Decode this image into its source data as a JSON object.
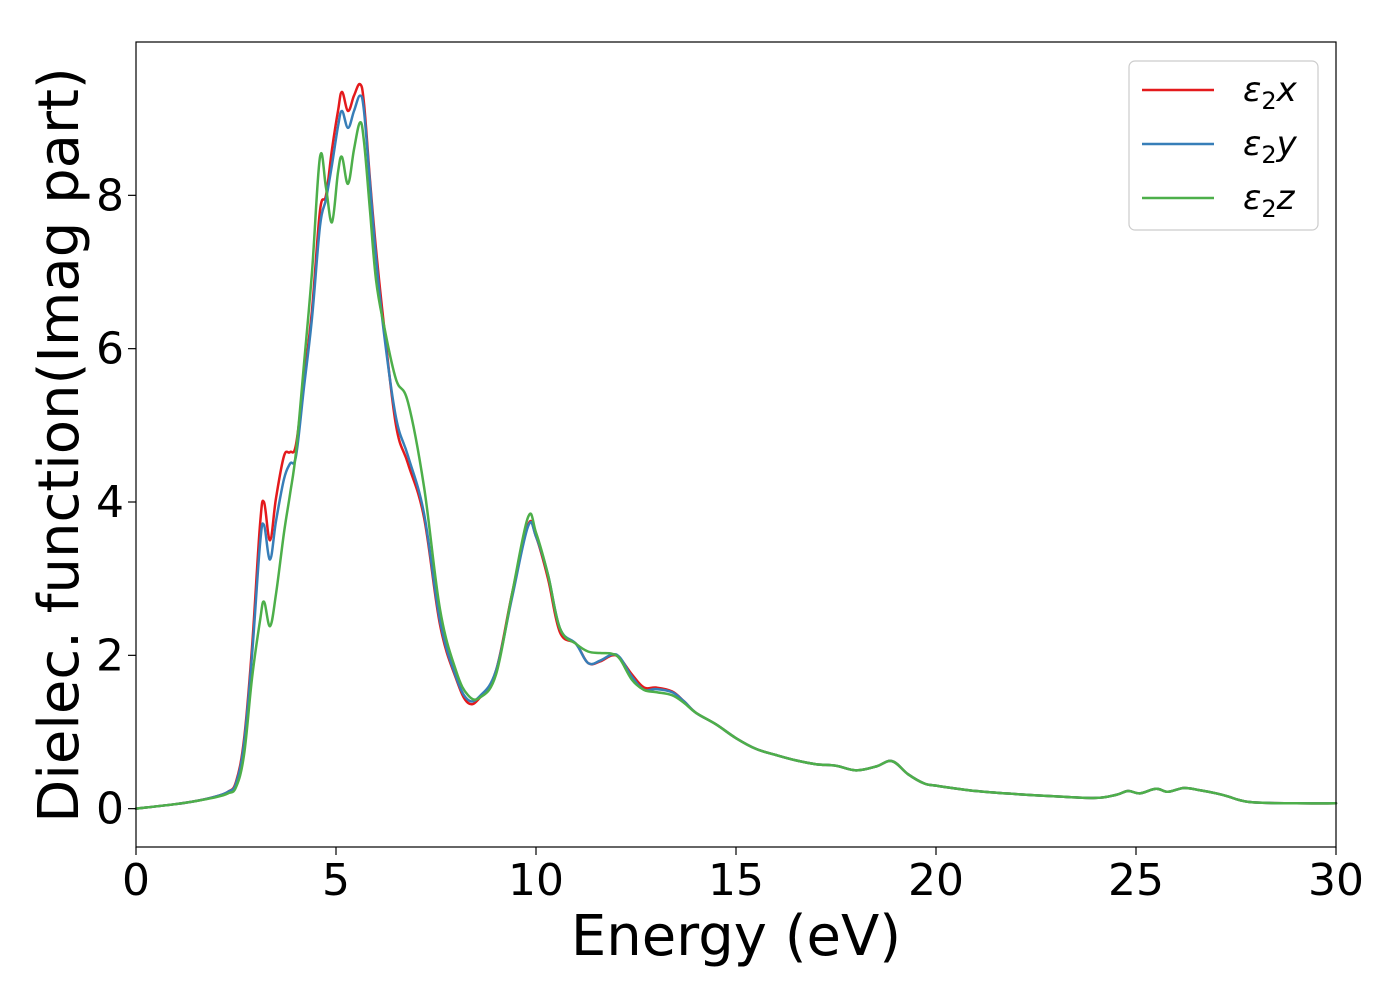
{
  "chart_data": {
    "type": "line",
    "title": "",
    "xlabel": "Energy (eV)",
    "ylabel": "Dielec. function(Imag part)",
    "xlim": [
      0,
      30
    ],
    "ylim": [
      -0.5,
      10.0
    ],
    "xticks": [
      0,
      5,
      10,
      15,
      20,
      25,
      30
    ],
    "yticks": [
      0,
      2,
      4,
      6,
      8
    ],
    "xtick_labels": [
      "0",
      "5",
      "10",
      "15",
      "20",
      "25",
      "30"
    ],
    "ytick_labels": [
      "0",
      "2",
      "4",
      "6",
      "8"
    ],
    "grid": false,
    "legend_position": "top-right",
    "series": [
      {
        "name": "ε2x",
        "legend": {
          "symbol": "ε",
          "sub": "2",
          "var": "x"
        },
        "color": "#e41a1c",
        "x": [
          0,
          1,
          1.5,
          2,
          2.3,
          2.5,
          2.7,
          2.9,
          3.1,
          3.2,
          3.35,
          3.5,
          3.7,
          3.85,
          4.0,
          4.2,
          4.4,
          4.6,
          4.75,
          4.9,
          5.05,
          5.15,
          5.3,
          5.45,
          5.6,
          5.7,
          5.85,
          6.0,
          6.2,
          6.5,
          6.8,
          7.2,
          7.6,
          8.0,
          8.3,
          8.6,
          9.0,
          9.4,
          9.8,
          10.0,
          10.3,
          10.6,
          11.0,
          11.3,
          11.6,
          11.9,
          12.1,
          12.4,
          12.7,
          13.0,
          13.4,
          13.7,
          14.0,
          14.5,
          15.0,
          15.5,
          16.0,
          16.5,
          17.0,
          17.5,
          18.0,
          18.5,
          18.9,
          19.3,
          19.7,
          20.0,
          21.0,
          22.0,
          23.0,
          24.0,
          24.5,
          24.8,
          25.1,
          25.5,
          25.8,
          26.2,
          26.6,
          27.0,
          27.3,
          27.6,
          28.0,
          29.0,
          30.0
        ],
        "y": [
          0,
          0.06,
          0.1,
          0.16,
          0.22,
          0.35,
          0.9,
          2.1,
          3.7,
          4.0,
          3.5,
          4.05,
          4.6,
          4.65,
          4.75,
          5.6,
          6.5,
          7.8,
          8.0,
          8.6,
          9.1,
          9.35,
          9.1,
          9.3,
          9.45,
          9.2,
          8.2,
          7.3,
          6.3,
          5.0,
          4.5,
          3.8,
          2.4,
          1.7,
          1.38,
          1.45,
          1.8,
          2.8,
          3.7,
          3.55,
          3.0,
          2.3,
          2.15,
          1.9,
          1.92,
          2.0,
          1.96,
          1.75,
          1.58,
          1.58,
          1.53,
          1.4,
          1.25,
          1.1,
          0.92,
          0.78,
          0.7,
          0.63,
          0.58,
          0.56,
          0.5,
          0.55,
          0.62,
          0.45,
          0.33,
          0.3,
          0.23,
          0.19,
          0.16,
          0.14,
          0.18,
          0.23,
          0.2,
          0.26,
          0.22,
          0.27,
          0.24,
          0.2,
          0.16,
          0.11,
          0.08,
          0.07,
          0.07
        ]
      },
      {
        "name": "ε2y",
        "legend": {
          "symbol": "ε",
          "sub": "2",
          "var": "y"
        },
        "color": "#377eb8",
        "x": [
          0,
          1,
          1.5,
          2,
          2.3,
          2.5,
          2.7,
          2.9,
          3.1,
          3.2,
          3.35,
          3.5,
          3.7,
          3.85,
          4.0,
          4.2,
          4.4,
          4.6,
          4.75,
          4.9,
          5.05,
          5.15,
          5.3,
          5.45,
          5.6,
          5.7,
          5.85,
          6.0,
          6.2,
          6.5,
          6.8,
          7.2,
          7.6,
          8.0,
          8.3,
          8.6,
          9.0,
          9.4,
          9.8,
          10.0,
          10.3,
          10.6,
          11.0,
          11.3,
          11.6,
          11.9,
          12.1,
          12.4,
          12.7,
          13.0,
          13.4,
          13.7,
          14.0,
          14.5,
          15.0,
          15.5,
          16.0,
          16.5,
          17.0,
          17.5,
          18.0,
          18.5,
          18.9,
          19.3,
          19.7,
          20.0,
          21.0,
          22.0,
          23.0,
          24.0,
          24.5,
          24.8,
          25.1,
          25.5,
          25.8,
          26.2,
          26.6,
          27.0,
          27.3,
          27.6,
          28.0,
          29.0,
          30.0
        ],
        "y": [
          0,
          0.06,
          0.1,
          0.16,
          0.22,
          0.33,
          0.85,
          2.0,
          3.45,
          3.7,
          3.25,
          3.75,
          4.3,
          4.5,
          4.6,
          5.5,
          6.4,
          7.6,
          7.95,
          8.4,
          8.9,
          9.1,
          8.88,
          9.1,
          9.3,
          9.1,
          8.15,
          7.2,
          6.2,
          5.1,
          4.6,
          3.85,
          2.45,
          1.72,
          1.42,
          1.47,
          1.8,
          2.75,
          3.68,
          3.55,
          3.05,
          2.35,
          2.15,
          1.9,
          1.93,
          2.01,
          1.97,
          1.72,
          1.55,
          1.56,
          1.52,
          1.4,
          1.25,
          1.1,
          0.92,
          0.78,
          0.7,
          0.63,
          0.58,
          0.56,
          0.5,
          0.55,
          0.62,
          0.45,
          0.33,
          0.3,
          0.23,
          0.19,
          0.16,
          0.14,
          0.18,
          0.23,
          0.2,
          0.26,
          0.22,
          0.27,
          0.24,
          0.2,
          0.16,
          0.11,
          0.08,
          0.07,
          0.07
        ]
      },
      {
        "name": "ε2z",
        "legend": {
          "symbol": "ε",
          "sub": "2",
          "var": "z"
        },
        "color": "#4daf4a",
        "x": [
          0,
          1,
          1.5,
          2,
          2.3,
          2.5,
          2.7,
          2.9,
          3.1,
          3.2,
          3.35,
          3.5,
          3.7,
          3.85,
          4.0,
          4.2,
          4.4,
          4.6,
          4.75,
          4.9,
          5.05,
          5.15,
          5.3,
          5.45,
          5.6,
          5.7,
          5.85,
          6.0,
          6.2,
          6.5,
          6.8,
          7.2,
          7.6,
          8.0,
          8.3,
          8.6,
          9.0,
          9.4,
          9.8,
          10.0,
          10.3,
          10.6,
          11.0,
          11.3,
          11.6,
          11.9,
          12.1,
          12.4,
          12.7,
          13.0,
          13.4,
          13.7,
          14.0,
          14.5,
          15.0,
          15.5,
          16.0,
          16.5,
          17.0,
          17.5,
          18.0,
          18.5,
          18.9,
          19.3,
          19.7,
          20.0,
          21.0,
          22.0,
          23.0,
          24.0,
          24.5,
          24.8,
          25.1,
          25.5,
          25.8,
          26.2,
          26.6,
          27.0,
          27.3,
          27.6,
          28.0,
          29.0,
          30.0
        ],
        "y": [
          0,
          0.06,
          0.1,
          0.15,
          0.2,
          0.28,
          0.7,
          1.7,
          2.45,
          2.7,
          2.38,
          2.8,
          3.6,
          4.1,
          4.65,
          5.8,
          7.0,
          8.5,
          8.1,
          7.65,
          8.3,
          8.5,
          8.15,
          8.6,
          8.95,
          8.7,
          7.8,
          6.9,
          6.3,
          5.6,
          5.3,
          4.2,
          2.6,
          1.8,
          1.48,
          1.45,
          1.75,
          2.8,
          3.8,
          3.6,
          3.05,
          2.35,
          2.15,
          2.05,
          2.03,
          2.02,
          1.95,
          1.68,
          1.55,
          1.52,
          1.48,
          1.38,
          1.25,
          1.1,
          0.92,
          0.78,
          0.7,
          0.63,
          0.58,
          0.56,
          0.5,
          0.55,
          0.62,
          0.45,
          0.33,
          0.3,
          0.23,
          0.19,
          0.16,
          0.14,
          0.18,
          0.23,
          0.2,
          0.26,
          0.22,
          0.27,
          0.24,
          0.2,
          0.16,
          0.11,
          0.08,
          0.07,
          0.07
        ]
      }
    ]
  }
}
